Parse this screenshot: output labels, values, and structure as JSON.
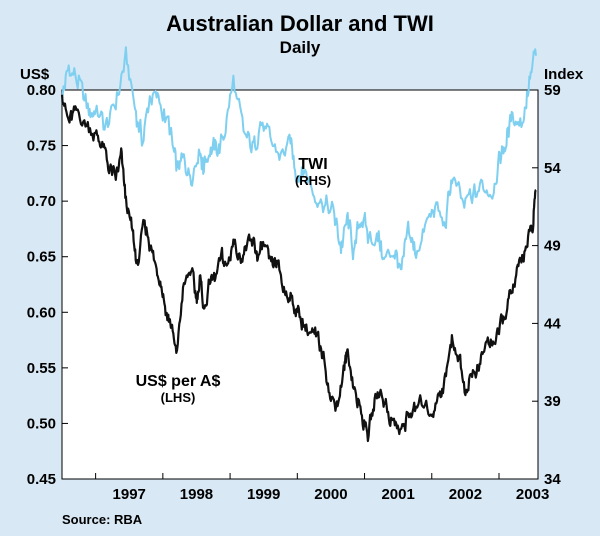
{
  "chart_data": {
    "type": "line",
    "title": "Australian Dollar and TWI",
    "subtitle": "Daily",
    "left_axis": {
      "unit": "US$",
      "ylim": [
        0.45,
        0.8
      ],
      "ticks": [
        "0.80",
        "0.75",
        "0.70",
        "0.65",
        "0.60",
        "0.55",
        "0.50",
        "0.45"
      ],
      "tick_values": [
        0.8,
        0.75,
        0.7,
        0.65,
        0.6,
        0.55,
        0.5,
        0.45
      ]
    },
    "right_axis": {
      "unit": "Index",
      "ylim": [
        34,
        59
      ],
      "ticks": [
        "59",
        "54",
        "49",
        "44",
        "39",
        "34"
      ],
      "tick_values": [
        59,
        54,
        49,
        44,
        39,
        34
      ]
    },
    "xlim": [
      1996.5,
      2003.58
    ],
    "x_ticks": [
      "1997",
      "1998",
      "1999",
      "2000",
      "2001",
      "2002",
      "2003"
    ],
    "x_tick_values": [
      1997,
      1998,
      1999,
      2000,
      2001,
      2002,
      2003
    ],
    "series": [
      {
        "name": "TWI",
        "side_label": "(RHS)",
        "axis": "right",
        "color": "#7fd0f0",
        "x": [
          1996.5,
          1996.6,
          1996.75,
          1996.9,
          1997.0,
          1997.15,
          1997.3,
          1997.45,
          1997.6,
          1997.7,
          1997.82,
          1997.95,
          1998.1,
          1998.2,
          1998.3,
          1998.42,
          1998.55,
          1998.6,
          1998.7,
          1998.8,
          1998.9,
          1999.05,
          1999.2,
          1999.35,
          1999.45,
          1999.6,
          1999.75,
          1999.9,
          2000.0,
          2000.1,
          2000.25,
          2000.4,
          2000.55,
          2000.65,
          2000.75,
          2000.85,
          2000.95,
          2001.05,
          2001.2,
          2001.3,
          2001.45,
          2001.55,
          2001.65,
          2001.75,
          2001.9,
          2002.05,
          2002.2,
          2002.3,
          2002.45,
          2002.6,
          2002.75,
          2002.9,
          2003.0,
          2003.1,
          2003.2,
          2003.35,
          2003.45,
          2003.55
        ],
        "values": [
          58.5,
          60.5,
          59.5,
          57.5,
          57.8,
          56.5,
          58.2,
          61.0,
          57.5,
          55.8,
          58.8,
          58.2,
          56.5,
          53.8,
          54.5,
          53.5,
          55.5,
          54.0,
          55.5,
          55.0,
          56.0,
          59.5,
          56.0,
          55.2,
          57.0,
          55.5,
          54.8,
          55.5,
          53.5,
          54.0,
          52.5,
          51.8,
          50.8,
          49.0,
          50.5,
          48.5,
          51.0,
          49.5,
          49.5,
          48.0,
          48.8,
          47.0,
          50.0,
          48.5,
          50.0,
          51.5,
          50.2,
          53.5,
          51.5,
          52.0,
          52.8,
          52.5,
          54.5,
          55.5,
          57.5,
          57.0,
          59.5,
          61.2
        ]
      },
      {
        "name": "US$ per A$",
        "side_label": "(LHS)",
        "axis": "left",
        "color": "#111111",
        "x": [
          1996.5,
          1996.6,
          1996.7,
          1996.85,
          1997.0,
          1997.1,
          1997.2,
          1997.3,
          1997.38,
          1997.45,
          1997.55,
          1997.62,
          1997.72,
          1997.8,
          1997.9,
          1997.97,
          1998.05,
          1998.12,
          1998.2,
          1998.3,
          1998.42,
          1998.5,
          1998.55,
          1998.62,
          1998.7,
          1998.78,
          1998.88,
          1998.95,
          1999.05,
          1999.15,
          1999.25,
          1999.35,
          1999.42,
          1999.5,
          1999.6,
          1999.7,
          1999.8,
          1999.9,
          2000.0,
          2000.1,
          2000.2,
          2000.3,
          2000.4,
          2000.5,
          2000.6,
          2000.7,
          2000.75,
          2000.85,
          2000.95,
          2001.05,
          2001.15,
          2001.25,
          2001.35,
          2001.45,
          2001.55,
          2001.65,
          2001.75,
          2001.85,
          2002.0,
          2002.1,
          2002.2,
          2002.3,
          2002.4,
          2002.5,
          2002.6,
          2002.7,
          2002.8,
          2002.9,
          2003.0,
          2003.1,
          2003.2,
          2003.3,
          2003.4,
          2003.5,
          2003.55
        ],
        "values": [
          0.8,
          0.77,
          0.78,
          0.77,
          0.76,
          0.75,
          0.73,
          0.72,
          0.74,
          0.7,
          0.67,
          0.64,
          0.68,
          0.665,
          0.64,
          0.63,
          0.6,
          0.59,
          0.56,
          0.62,
          0.64,
          0.61,
          0.63,
          0.6,
          0.63,
          0.63,
          0.65,
          0.64,
          0.665,
          0.65,
          0.66,
          0.66,
          0.65,
          0.66,
          0.64,
          0.645,
          0.62,
          0.615,
          0.6,
          0.59,
          0.58,
          0.575,
          0.56,
          0.52,
          0.52,
          0.55,
          0.565,
          0.53,
          0.51,
          0.49,
          0.52,
          0.53,
          0.51,
          0.5,
          0.49,
          0.51,
          0.51,
          0.52,
          0.51,
          0.525,
          0.54,
          0.575,
          0.56,
          0.53,
          0.545,
          0.55,
          0.57,
          0.575,
          0.58,
          0.6,
          0.62,
          0.64,
          0.66,
          0.675,
          0.71
        ]
      }
    ],
    "annotations": [
      {
        "text": "TWI",
        "subtext": "(RHS)"
      },
      {
        "text": "US$ per A$",
        "subtext": "(LHS)"
      }
    ],
    "source": "Source:  RBA",
    "grid": false
  }
}
